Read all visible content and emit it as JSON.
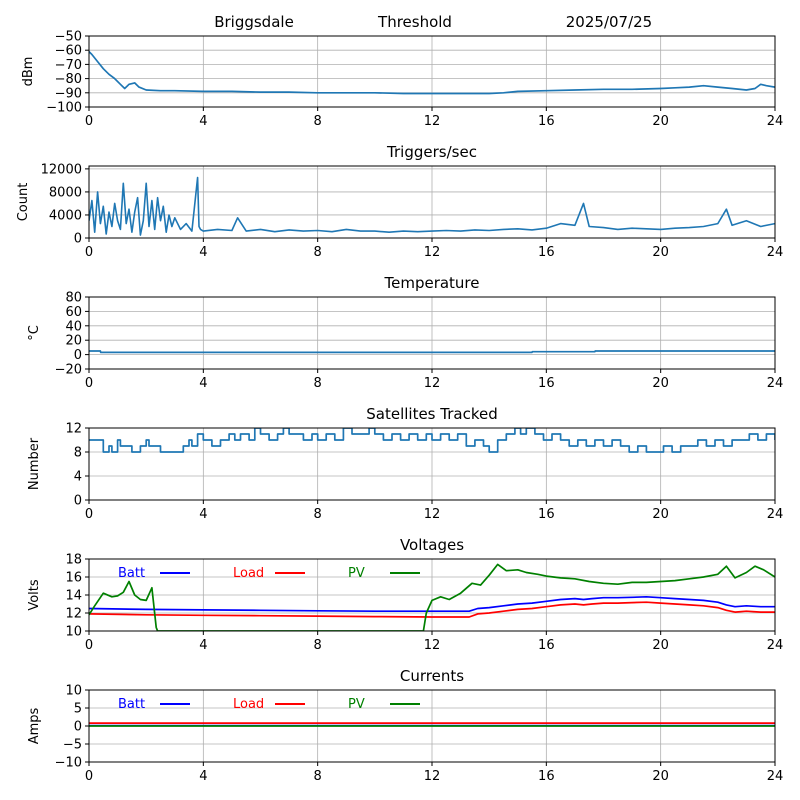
{
  "header": {
    "site": "Briggsdale",
    "mode": "Threshold",
    "date": "2025/07/25"
  },
  "colors": {
    "series_default": "#1f77b4",
    "batt": "#0000ff",
    "load": "#ff0000",
    "pv": "#008000",
    "grid": "#b0b0b0"
  },
  "chart_data": [
    {
      "id": "threshold",
      "type": "line",
      "title": "",
      "xlabel": "",
      "ylabel": "dBm",
      "xlim": [
        0,
        24
      ],
      "ylim": [
        -100,
        -50
      ],
      "xticks": [
        0,
        4,
        8,
        12,
        16,
        20,
        24
      ],
      "yticks": [
        -100,
        -90,
        -80,
        -70,
        -60,
        -50
      ],
      "grid": true,
      "series": [
        {
          "color": "#1f77b4",
          "x": [
            0,
            0.1,
            0.3,
            0.5,
            0.7,
            0.9,
            1.1,
            1.25,
            1.4,
            1.6,
            1.75,
            2.0,
            2.5,
            3,
            4,
            5,
            6,
            7,
            8,
            9,
            10,
            11,
            12,
            13,
            14,
            14.5,
            15,
            16,
            17,
            18,
            19,
            20,
            20.5,
            21,
            21.5,
            22,
            22.5,
            23,
            23.3,
            23.5,
            23.7,
            24
          ],
          "y": [
            -61,
            -63,
            -68,
            -73,
            -77,
            -80,
            -84,
            -87,
            -84,
            -83,
            -86,
            -88,
            -88.5,
            -88.5,
            -89,
            -89,
            -89.5,
            -89.5,
            -90,
            -90,
            -90,
            -90.5,
            -90.5,
            -90.5,
            -90.5,
            -90,
            -89,
            -88.5,
            -88,
            -87.5,
            -87.5,
            -87,
            -86.5,
            -86,
            -85,
            -86,
            -87,
            -88,
            -87,
            -84,
            -85,
            -86
          ]
        }
      ]
    },
    {
      "id": "triggers",
      "type": "line",
      "title": "Triggers/sec",
      "xlabel": "",
      "ylabel": "Count",
      "xlim": [
        0,
        24
      ],
      "ylim": [
        0,
        12500
      ],
      "xticks": [
        0,
        4,
        8,
        12,
        16,
        20,
        24
      ],
      "yticks": [
        0,
        4000,
        8000,
        12000
      ],
      "grid": true,
      "series": [
        {
          "color": "#1f77b4",
          "x": [
            0,
            0.1,
            0.2,
            0.3,
            0.4,
            0.5,
            0.6,
            0.7,
            0.8,
            0.9,
            1.0,
            1.1,
            1.2,
            1.3,
            1.4,
            1.5,
            1.6,
            1.7,
            1.8,
            1.9,
            2.0,
            2.1,
            2.2,
            2.3,
            2.4,
            2.5,
            2.6,
            2.7,
            2.8,
            2.9,
            3.0,
            3.2,
            3.4,
            3.6,
            3.8,
            3.85,
            3.9,
            4.0,
            4.5,
            5.0,
            5.2,
            5.5,
            6,
            6.5,
            7,
            7.5,
            8,
            8.5,
            9,
            9.5,
            10,
            10.5,
            11,
            11.5,
            12,
            12.5,
            13,
            13.5,
            14,
            14.5,
            15,
            15.5,
            16,
            16.5,
            17,
            17.3,
            17.5,
            18,
            18.5,
            19,
            19.5,
            20,
            20.5,
            21,
            21.5,
            22,
            22.3,
            22.5,
            23,
            23.5,
            24
          ],
          "y": [
            3000,
            6500,
            1000,
            8000,
            2500,
            5500,
            700,
            4500,
            2000,
            6000,
            3000,
            1500,
            9500,
            2500,
            5000,
            1000,
            4500,
            7000,
            500,
            3000,
            9500,
            2000,
            6500,
            1500,
            7000,
            3000,
            5500,
            1000,
            4000,
            2000,
            3500,
            1500,
            2500,
            1200,
            10500,
            2000,
            1500,
            1200,
            1500,
            1300,
            3500,
            1200,
            1500,
            1100,
            1400,
            1200,
            1300,
            1100,
            1500,
            1200,
            1200,
            1000,
            1200,
            1100,
            1200,
            1300,
            1200,
            1400,
            1300,
            1500,
            1600,
            1400,
            1700,
            2500,
            2200,
            6000,
            2000,
            1800,
            1500,
            1700,
            1600,
            1500,
            1700,
            1800,
            2000,
            2500,
            5000,
            2200,
            3000,
            2000,
            2500
          ]
        }
      ]
    },
    {
      "id": "temperature",
      "type": "line",
      "title": "Temperature",
      "xlabel": "",
      "ylabel": "°C",
      "xlim": [
        0,
        24
      ],
      "ylim": [
        -20,
        80
      ],
      "xticks": [
        0,
        4,
        8,
        12,
        16,
        20,
        24
      ],
      "yticks": [
        -20,
        0,
        20,
        40,
        60,
        80
      ],
      "grid": true,
      "series": [
        {
          "color": "#1f77b4",
          "x": [
            0,
            0.4,
            0.41,
            15.5,
            15.51,
            17.7,
            17.71,
            24
          ],
          "y": [
            5,
            5,
            3,
            3,
            4,
            4,
            5,
            5
          ]
        }
      ]
    },
    {
      "id": "satellites",
      "type": "line",
      "title": "Satellites Tracked",
      "xlabel": "",
      "ylabel": "Number",
      "xlim": [
        0,
        24
      ],
      "ylim": [
        0,
        12
      ],
      "xticks": [
        0,
        4,
        8,
        12,
        16,
        20,
        24
      ],
      "yticks": [
        0,
        4,
        8,
        12
      ],
      "grid": true,
      "step": true,
      "series": [
        {
          "color": "#1f77b4",
          "x": [
            0,
            0.4,
            0.5,
            0.7,
            0.8,
            1.0,
            1.1,
            1.5,
            1.8,
            2.0,
            2.1,
            2.5,
            3.0,
            3.3,
            3.5,
            3.6,
            3.8,
            4.0,
            4.3,
            4.6,
            4.9,
            5.1,
            5.3,
            5.6,
            5.8,
            6.0,
            6.3,
            6.6,
            6.8,
            7.0,
            7.2,
            7.5,
            7.8,
            8.0,
            8.3,
            8.6,
            8.9,
            9.2,
            9.5,
            9.8,
            10.0,
            10.3,
            10.6,
            10.9,
            11.2,
            11.5,
            11.8,
            12.0,
            12.3,
            12.6,
            12.9,
            13.2,
            13.5,
            13.8,
            14.0,
            14.3,
            14.6,
            14.9,
            15.1,
            15.3,
            15.6,
            15.9,
            16.2,
            16.5,
            16.8,
            17.1,
            17.4,
            17.7,
            18.0,
            18.3,
            18.6,
            18.9,
            19.2,
            19.5,
            19.8,
            20.1,
            20.4,
            20.7,
            21.0,
            21.3,
            21.6,
            21.9,
            22.2,
            22.5,
            22.8,
            23.1,
            23.4,
            23.7,
            24
          ],
          "y": [
            10,
            10,
            8,
            9,
            8,
            10,
            9,
            8,
            9,
            10,
            9,
            8,
            8,
            9,
            10,
            9,
            11,
            10,
            9,
            10,
            11,
            10,
            11,
            10,
            12,
            11,
            10,
            11,
            12,
            11,
            11,
            10,
            11,
            10,
            11,
            10,
            12,
            11,
            11,
            12,
            11,
            10,
            11,
            10,
            11,
            10,
            11,
            10,
            11,
            10,
            11,
            9,
            10,
            9,
            8,
            10,
            11,
            12,
            11,
            12,
            11,
            10,
            11,
            10,
            9,
            10,
            9,
            10,
            9,
            10,
            9,
            8,
            9,
            8,
            8,
            9,
            8,
            9,
            9,
            10,
            9,
            10,
            9,
            10,
            10,
            11,
            10,
            11,
            10
          ]
        }
      ]
    },
    {
      "id": "voltages",
      "type": "line",
      "title": "Voltages",
      "xlabel": "",
      "ylabel": "Volts",
      "xlim": [
        0,
        24
      ],
      "ylim": [
        10,
        18
      ],
      "xticks": [
        0,
        4,
        8,
        12,
        16,
        20,
        24
      ],
      "yticks": [
        10,
        12,
        14,
        16,
        18
      ],
      "grid": true,
      "legend": "top-left",
      "series": [
        {
          "name": "Batt",
          "color": "#0000ff",
          "x": [
            0,
            2,
            4,
            6,
            8,
            10,
            12,
            13.3,
            13.6,
            14,
            14.5,
            15,
            15.5,
            16,
            16.5,
            17,
            17.3,
            17.6,
            18,
            18.5,
            19,
            19.5,
            20,
            20.5,
            21,
            21.5,
            22,
            22.3,
            22.6,
            23,
            23.5,
            24
          ],
          "y": [
            12.5,
            12.4,
            12.35,
            12.3,
            12.25,
            12.2,
            12.2,
            12.2,
            12.5,
            12.6,
            12.8,
            13.0,
            13.1,
            13.3,
            13.5,
            13.6,
            13.5,
            13.6,
            13.7,
            13.7,
            13.75,
            13.8,
            13.7,
            13.6,
            13.5,
            13.4,
            13.2,
            12.9,
            12.7,
            12.8,
            12.7,
            12.7
          ]
        },
        {
          "name": "Load",
          "color": "#ff0000",
          "x": [
            0,
            2,
            4,
            6,
            8,
            10,
            12,
            13.3,
            13.6,
            14,
            14.5,
            15,
            15.5,
            16,
            16.5,
            17,
            17.3,
            17.6,
            18,
            18.5,
            19,
            19.5,
            20,
            20.5,
            21,
            21.5,
            22,
            22.3,
            22.6,
            23,
            23.5,
            24
          ],
          "y": [
            11.9,
            11.8,
            11.75,
            11.7,
            11.65,
            11.6,
            11.55,
            11.55,
            11.9,
            12.0,
            12.2,
            12.4,
            12.5,
            12.7,
            12.9,
            13.0,
            12.9,
            13.0,
            13.1,
            13.1,
            13.15,
            13.2,
            13.1,
            13.0,
            12.9,
            12.8,
            12.6,
            12.3,
            12.1,
            12.2,
            12.1,
            12.1
          ]
        },
        {
          "name": "PV",
          "color": "#008000",
          "x": [
            0,
            0.2,
            0.5,
            0.8,
            1.0,
            1.2,
            1.4,
            1.6,
            1.8,
            2.0,
            2.2,
            2.35,
            2.4,
            11.7,
            11.8,
            12.0,
            12.3,
            12.6,
            13.0,
            13.4,
            13.7,
            14.0,
            14.3,
            14.6,
            15.0,
            15.3,
            15.7,
            16.0,
            16.5,
            17.0,
            17.5,
            18.0,
            18.5,
            19.0,
            19.5,
            20.0,
            20.5,
            21.0,
            21.5,
            22.0,
            22.3,
            22.6,
            23.0,
            23.3,
            23.6,
            24
          ],
          "y": [
            11.8,
            12.8,
            14.2,
            13.8,
            13.9,
            14.3,
            15.5,
            14.0,
            13.5,
            13.4,
            14.8,
            10.4,
            10.0,
            10.0,
            12.0,
            13.4,
            13.8,
            13.5,
            14.2,
            15.3,
            15.1,
            16.2,
            17.4,
            16.7,
            16.8,
            16.5,
            16.3,
            16.1,
            15.9,
            15.8,
            15.5,
            15.3,
            15.2,
            15.4,
            15.4,
            15.5,
            15.6,
            15.8,
            16.0,
            16.3,
            17.2,
            15.9,
            16.5,
            17.2,
            16.8,
            16.0
          ]
        }
      ]
    },
    {
      "id": "currents",
      "type": "line",
      "title": "Currents",
      "xlabel": "",
      "ylabel": "Amps",
      "xlim": [
        0,
        24
      ],
      "ylim": [
        -10,
        10
      ],
      "xticks": [
        0,
        4,
        8,
        12,
        16,
        20,
        24
      ],
      "yticks": [
        -10,
        -5,
        0,
        5,
        10
      ],
      "grid": true,
      "legend": "top-left",
      "series": [
        {
          "name": "Batt",
          "color": "#0000ff",
          "x": [
            0,
            24
          ],
          "y": [
            0.1,
            0.1
          ]
        },
        {
          "name": "Load",
          "color": "#ff0000",
          "x": [
            0,
            12,
            24
          ],
          "y": [
            0.8,
            0.8,
            0.8
          ]
        },
        {
          "name": "PV",
          "color": "#008000",
          "x": [
            0,
            24
          ],
          "y": [
            0,
            0
          ]
        }
      ]
    }
  ]
}
